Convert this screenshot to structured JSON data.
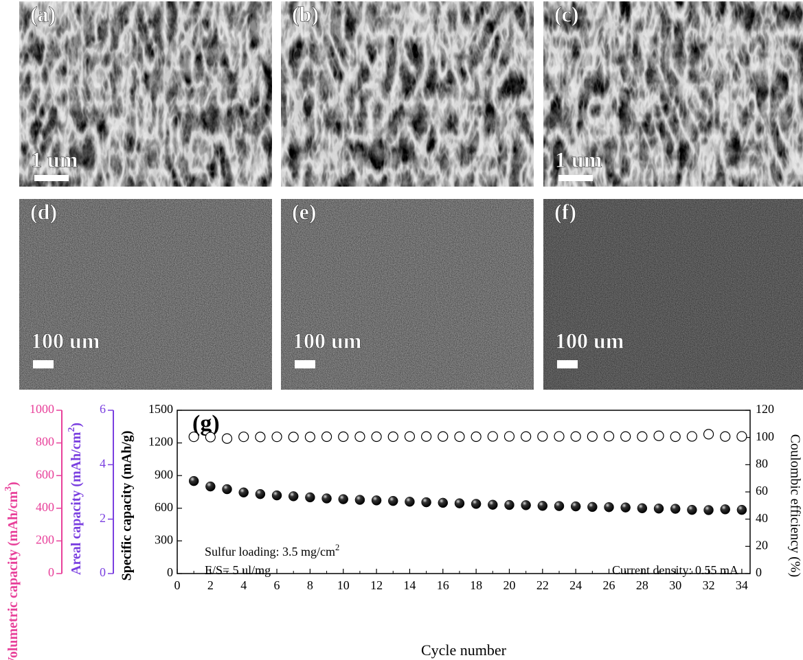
{
  "panels": [
    {
      "label": "(a)",
      "scale": "1 um"
    },
    {
      "label": "(b)"
    },
    {
      "label": "(c)",
      "scale": "1 um"
    },
    {
      "label": "(d)",
      "scale": "100 um"
    },
    {
      "label": "(e)",
      "scale": "100 um"
    },
    {
      "label": "(f)",
      "scale": "100 um"
    }
  ],
  "chart_data": {
    "type": "scatter",
    "panel_label": "(g)",
    "xlabel": "Cycle number",
    "ylabel": "Specific capacity (mAh/g)",
    "y2label": "Coulombic efficiency (%)",
    "extra_axes": [
      {
        "label": "Volumetric capacity (mAh/cm",
        "sup": "3",
        "after": ")",
        "lim": [
          0,
          1000
        ],
        "ticks": [
          0,
          200,
          400,
          600,
          800,
          1000
        ],
        "color": "#e8409a"
      },
      {
        "label": "Areal capacity (mAh/cm",
        "sup": "2",
        "after": ")",
        "lim": [
          0,
          6
        ],
        "ticks": [
          0,
          2,
          4,
          6
        ],
        "color": "#7a3fe0"
      }
    ],
    "annotations": [
      {
        "text": "Sulfur loading: 3.5 mg/cm",
        "sup": "2"
      },
      {
        "text": "E/S= 5 ul/mg"
      },
      {
        "text": "Current density: 0.55 mA"
      }
    ],
    "x": [
      1,
      2,
      3,
      4,
      5,
      6,
      7,
      8,
      9,
      10,
      11,
      12,
      13,
      14,
      15,
      16,
      17,
      18,
      19,
      20,
      21,
      22,
      23,
      24,
      25,
      26,
      27,
      28,
      29,
      30,
      31,
      32,
      33,
      34
    ],
    "xlim": [
      0,
      34.5
    ],
    "xticks": [
      0,
      2,
      4,
      6,
      8,
      10,
      12,
      14,
      16,
      18,
      20,
      22,
      24,
      26,
      28,
      30,
      32,
      34
    ],
    "ylim": [
      0,
      1500
    ],
    "yticks": [
      0,
      300,
      600,
      900,
      1200,
      1500
    ],
    "y2lim": [
      0,
      120
    ],
    "y2ticks": [
      0,
      20,
      40,
      60,
      80,
      100,
      120
    ],
    "series": [
      {
        "name": "Specific capacity",
        "color": "#000000",
        "filled": true,
        "values": [
          850,
          800,
          775,
          745,
          730,
          718,
          710,
          700,
          690,
          683,
          677,
          672,
          667,
          660,
          655,
          650,
          645,
          640,
          632,
          630,
          628,
          622,
          620,
          617,
          612,
          610,
          607,
          600,
          597,
          595,
          585,
          583,
          590,
          585
        ]
      },
      {
        "name": "Coulombic efficiency",
        "color": "#000000",
        "filled": false,
        "axis": "y2",
        "values": [
          100.5,
          100.3,
          99.2,
          100.5,
          100.4,
          100.5,
          100.4,
          100.4,
          100.6,
          100.6,
          100.6,
          100.6,
          100.6,
          100.7,
          100.7,
          100.7,
          100.6,
          100.6,
          100.8,
          100.8,
          100.7,
          100.8,
          100.8,
          100.7,
          100.7,
          100.9,
          100.7,
          100.7,
          101.2,
          100.6,
          100.8,
          102.4,
          100.7,
          100.8
        ]
      }
    ]
  }
}
